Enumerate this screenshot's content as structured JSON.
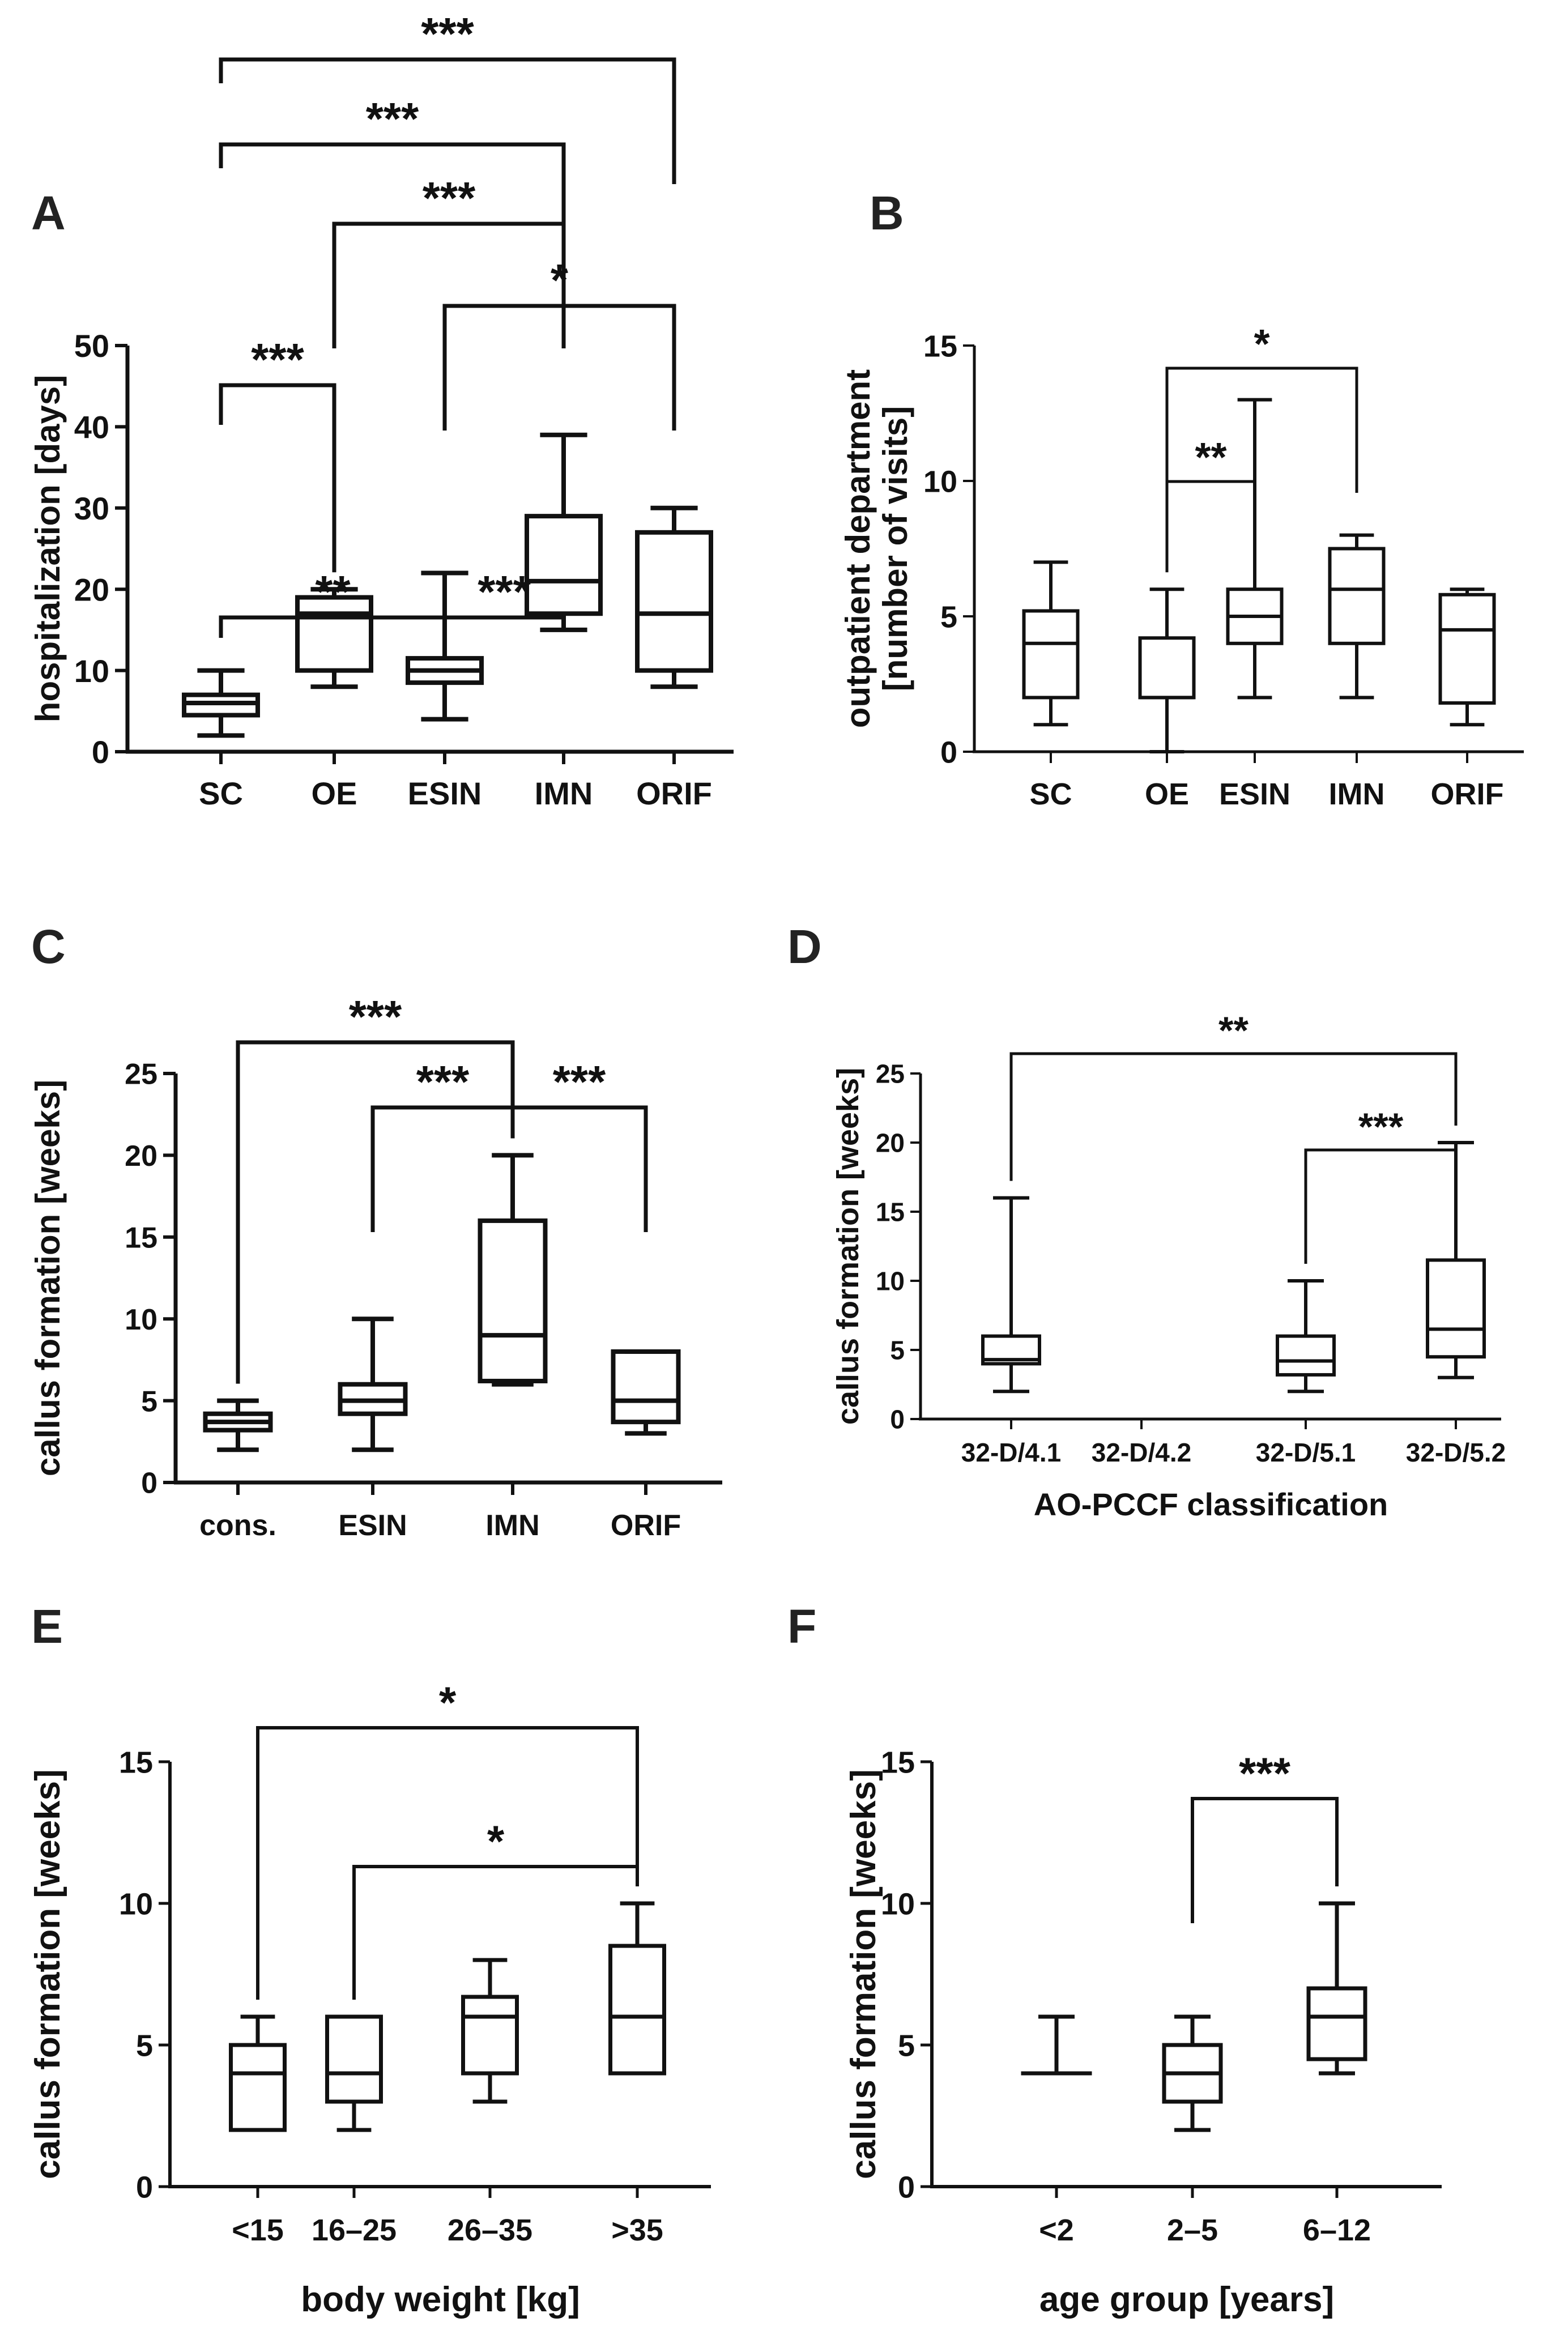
{
  "chart_data": [
    {
      "panel": "A",
      "type": "boxplot",
      "categories": [
        "SC",
        "OE",
        "ESIN",
        "IMN",
        "ORIF"
      ],
      "ylabel": "hospitalization [days]",
      "xlabel": "",
      "ylim": [
        0,
        50
      ],
      "yticks": [
        0,
        10,
        20,
        30,
        40,
        50
      ],
      "boxes": [
        {
          "min": 2,
          "q1": 4.5,
          "median": 6,
          "q3": 7,
          "max": 10
        },
        {
          "min": 8,
          "q1": 10,
          "median": 17,
          "q3": 19,
          "max": 20
        },
        {
          "min": 4,
          "q1": 8.5,
          "median": 10,
          "q3": 11.5,
          "max": 22
        },
        {
          "min": 15,
          "q1": 17,
          "median": 21,
          "q3": 29,
          "max": 39
        },
        {
          "min": 8,
          "q1": 10,
          "median": 17,
          "q3": 27,
          "max": 30
        }
      ],
      "significance": [
        {
          "from": 0,
          "to": 1,
          "label": "***"
        },
        {
          "from": 2,
          "to": 3,
          "label": "***"
        },
        {
          "from": 0,
          "to": 2,
          "label": "**"
        },
        {
          "from": 2,
          "to": 4,
          "label": "*"
        },
        {
          "from": 1,
          "to": 3,
          "label": "***"
        },
        {
          "from": 0,
          "to": 3,
          "label": "***"
        },
        {
          "from": 0,
          "to": 4,
          "label": "***"
        }
      ]
    },
    {
      "panel": "B",
      "type": "boxplot",
      "categories": [
        "SC",
        "OE",
        "ESIN",
        "IMN",
        "ORIF"
      ],
      "ylabel": "outpatient department [number of visits]",
      "ylabel_lines": [
        "outpatient department",
        "[number of visits]"
      ],
      "xlabel": "",
      "ylim": [
        0,
        15
      ],
      "yticks": [
        0,
        5,
        10,
        15
      ],
      "boxes": [
        {
          "min": 1,
          "q1": 2,
          "median": 4,
          "q3": 5.2,
          "max": 7
        },
        {
          "min": 0,
          "q1": 2,
          "median": 2,
          "q3": 4.2,
          "max": 6
        },
        {
          "min": 2,
          "q1": 4,
          "median": 5,
          "q3": 6,
          "max": 13
        },
        {
          "min": 2,
          "q1": 4,
          "median": 6,
          "q3": 7.5,
          "max": 8
        },
        {
          "min": 1,
          "q1": 1.8,
          "median": 4.5,
          "q3": 5.8,
          "max": 6
        }
      ],
      "significance": [
        {
          "from": 1,
          "to": 2,
          "label": "**"
        },
        {
          "from": 1,
          "to": 3,
          "label": "*"
        }
      ]
    },
    {
      "panel": "C",
      "type": "boxplot",
      "categories": [
        "cons.",
        "ESIN",
        "IMN",
        "ORIF"
      ],
      "ylabel": "callus formation [weeks]",
      "xlabel": "",
      "ylim": [
        0,
        25
      ],
      "yticks": [
        0,
        5,
        10,
        15,
        20,
        25
      ],
      "boxes": [
        {
          "min": 2,
          "q1": 3.2,
          "median": 3.7,
          "q3": 4.2,
          "max": 5
        },
        {
          "min": 2,
          "q1": 4.2,
          "median": 5,
          "q3": 6,
          "max": 10
        },
        {
          "min": 6,
          "q1": 6.2,
          "median": 9,
          "q3": 16,
          "max": 20
        },
        {
          "min": 3,
          "q1": 3.7,
          "median": 5,
          "q3": 8,
          "max": 8
        }
      ],
      "significance": [
        {
          "from": 1,
          "to": 2,
          "label": "***"
        },
        {
          "from": 2,
          "to": 3,
          "label": "***"
        },
        {
          "from": 0,
          "to": 2,
          "label": "***"
        }
      ]
    },
    {
      "panel": "D",
      "type": "boxplot",
      "categories": [
        "32-D/4.1",
        "32-D/4.2",
        "32-D/5.1",
        "32-D/5.2"
      ],
      "ylabel": "callus formation [weeks]",
      "xlabel": "AO-PCCF classification",
      "ylim": [
        0,
        25
      ],
      "yticks": [
        0,
        5,
        10,
        15,
        20,
        25
      ],
      "boxes": [
        {
          "min": 2,
          "q1": 4,
          "median": 4.3,
          "q3": 6,
          "max": 16
        },
        null,
        {
          "min": 2,
          "q1": 3.2,
          "median": 4.2,
          "q3": 6,
          "max": 10
        },
        {
          "min": 3,
          "q1": 4.5,
          "median": 6.5,
          "q3": 11.5,
          "max": 20
        }
      ],
      "significance": [
        {
          "from": 2,
          "to": 3,
          "label": "***"
        },
        {
          "from": 0,
          "to": 3,
          "label": "**"
        }
      ]
    },
    {
      "panel": "E",
      "type": "boxplot",
      "categories": [
        "<15",
        "16–25",
        "26–35",
        ">35"
      ],
      "ylabel": "callus formation [weeks]",
      "xlabel": "body weight [kg]",
      "ylim": [
        0,
        15
      ],
      "yticks": [
        0,
        5,
        10,
        15
      ],
      "boxes": [
        {
          "min": 2,
          "q1": 2,
          "median": 4,
          "q3": 5,
          "max": 6
        },
        {
          "min": 2,
          "q1": 3,
          "median": 4,
          "q3": 6,
          "max": 6
        },
        {
          "min": 3,
          "q1": 4,
          "median": 6,
          "q3": 6.7,
          "max": 8
        },
        {
          "min": 4,
          "q1": 4,
          "median": 6,
          "q3": 8.5,
          "max": 10
        }
      ],
      "significance": [
        {
          "from": 1,
          "to": 3,
          "label": "*"
        },
        {
          "from": 0,
          "to": 3,
          "label": "*"
        }
      ]
    },
    {
      "panel": "F",
      "type": "boxplot",
      "categories": [
        "<2",
        "2–5",
        "6–12"
      ],
      "ylabel": "callus formation [weeks]",
      "xlabel": "age group [years]",
      "ylim": [
        0,
        15
      ],
      "yticks": [
        0,
        5,
        10,
        15
      ],
      "boxes": [
        {
          "min": 4,
          "q1": 4,
          "median": 4,
          "q3": 4,
          "max": 6
        },
        {
          "min": 2,
          "q1": 3,
          "median": 4,
          "q3": 5,
          "max": 6
        },
        {
          "min": 4,
          "q1": 4.5,
          "median": 6,
          "q3": 7,
          "max": 10
        }
      ],
      "significance": [
        {
          "from": 1,
          "to": 2,
          "label": "***"
        }
      ]
    }
  ]
}
